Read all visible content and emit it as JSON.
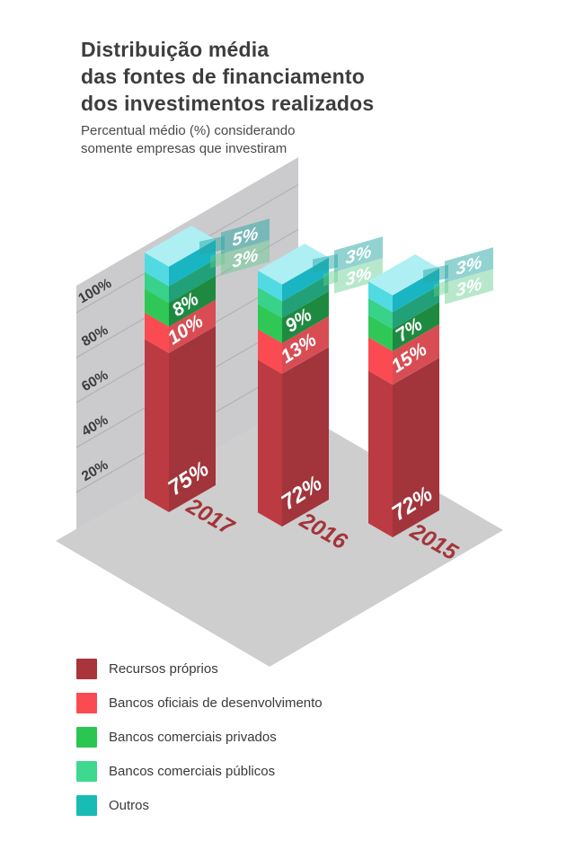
{
  "header": {
    "title_lines": [
      "Distribuição média",
      "das fontes de financiamento",
      "dos investimentos realizados"
    ],
    "subtitle_lines": [
      "Percentual médio (%) considerando",
      "somente empresas que investiram"
    ]
  },
  "chart_data": {
    "type": "bar",
    "variant": "isometric-3d-stacked-columns",
    "unit": "%",
    "categories": [
      "2017",
      "2016",
      "2015"
    ],
    "series": [
      {
        "name": "Recursos próprios",
        "values": [
          75,
          72,
          72
        ],
        "face_light": "#bc3a41",
        "face_dark": "#a2343c",
        "legend_color": "#a93439"
      },
      {
        "name": "Bancos oficiais de desenvolvimento",
        "values": [
          10,
          13,
          15
        ],
        "face_light": "#fb4b52",
        "face_dark": "#d84d54",
        "legend_color": "#fb4b52"
      },
      {
        "name": "Bancos comerciais privados",
        "values": [
          8,
          9,
          7
        ],
        "face_light": "#2fc857",
        "face_dark": "#1e8a40",
        "legend_color": "#2bc652"
      },
      {
        "name": "Bancos comerciais públicos",
        "values": [
          3,
          3,
          3
        ],
        "face_light": "#38d28a",
        "face_dark": "#22a077",
        "legend_color": "#3fd88f"
      },
      {
        "name": "Outros",
        "values": [
          5,
          3,
          3
        ],
        "face_light": "#52dae3",
        "face_dark": "#1ab5c2",
        "legend_color": "#18bcb4"
      }
    ],
    "axis_ticks": [
      "100%",
      "80%",
      "60%",
      "40%",
      "20%"
    ],
    "ylim": [
      0,
      100
    ],
    "grid": true,
    "legend_position": "bottom-left",
    "colors": {
      "top_face": "#aeeff4",
      "wall": "#cbcbcd",
      "floor": "#cecece",
      "gridline": "#b4b4b6",
      "axis_label": "#3c3c3c",
      "year_label": "#a4343b",
      "callout_teal": "rgba(38,168,164,0.5)",
      "callout_green": "rgba(98,204,142,0.45)",
      "callout_text": "#ffffff",
      "bar_label_text": "#ffffff"
    }
  }
}
